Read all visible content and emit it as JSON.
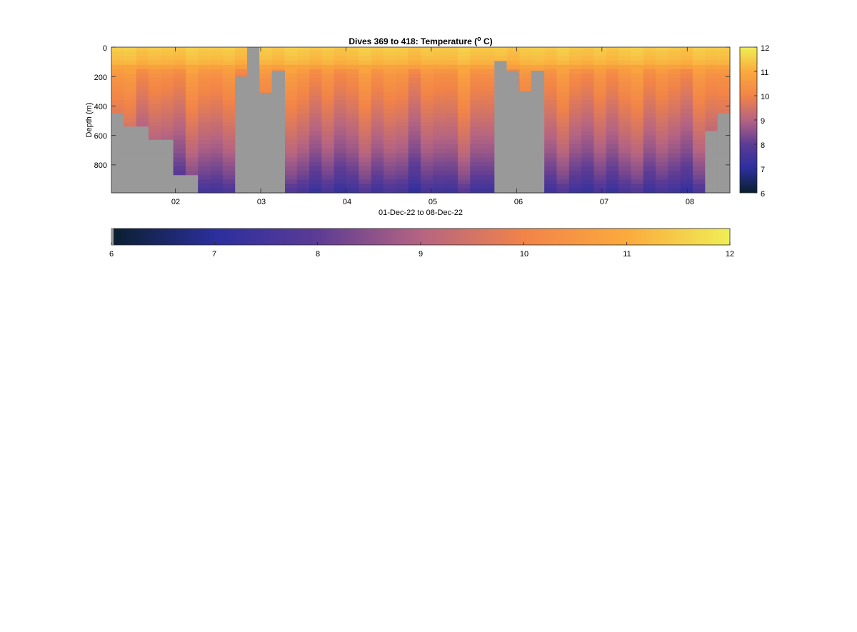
{
  "chart_data": {
    "type": "heatmap",
    "title": "Dives 369 to 418: Temperature (",
    "title_superscript": "o",
    "title_suffix": " C)",
    "ylabel": "Depth (m)",
    "xlabel": "01-Dec-22 to 08-Dec-22",
    "x_ticks": [
      "02",
      "03",
      "04",
      "05",
      "06",
      "07",
      "08"
    ],
    "y_ticks": [
      "0",
      "200",
      "400",
      "600",
      "800"
    ],
    "y_range_m": [
      0,
      990
    ],
    "y_reversed": true,
    "x_range_days": [
      1.25,
      8.5
    ],
    "dives": 50,
    "dive_first": 369,
    "dive_last": 418,
    "colorbar_ticks": [
      "6",
      "7",
      "8",
      "9",
      "10",
      "11",
      "12"
    ],
    "color_range": [
      6,
      12
    ],
    "colormap": [
      "#0a1f2e",
      "#2c2f9e",
      "#5b3b95",
      "#b56482",
      "#f28448",
      "#fba93d",
      "#f0ee55"
    ],
    "nodata_color": "#999999",
    "profile_max_depth_m": [
      430,
      530,
      530,
      630,
      630,
      850,
      850,
      990,
      990,
      990,
      990,
      990,
      990,
      990,
      990,
      990,
      990,
      990,
      990,
      990,
      990,
      990,
      990,
      990,
      990,
      990,
      990,
      990,
      990,
      990,
      990,
      990,
      990,
      990,
      990,
      990,
      990,
      990,
      990,
      990,
      990,
      990,
      990,
      990,
      990,
      990,
      990,
      990,
      545,
      425
    ],
    "gaps": [
      {
        "from_day": 2.7,
        "to_day": 3.28,
        "steps": [
          [
            2.7,
            200
          ],
          [
            2.84,
            0
          ],
          [
            2.98,
            310
          ],
          [
            3.13,
            160
          ]
        ]
      },
      {
        "from_day": 5.74,
        "to_day": 6.32,
        "steps": [
          [
            5.74,
            95
          ],
          [
            5.88,
            160
          ],
          [
            6.02,
            300
          ],
          [
            6.17,
            160
          ]
        ]
      }
    ],
    "temperature_by_depth": {
      "depth_m": [
        0,
        100,
        150,
        200,
        300,
        400,
        500,
        600,
        700,
        800,
        900,
        990
      ],
      "temp_c": [
        11.5,
        11.2,
        10.6,
        10.3,
        10.0,
        9.7,
        9.4,
        9.1,
        8.8,
        8.4,
        8.0,
        7.4
      ]
    }
  }
}
